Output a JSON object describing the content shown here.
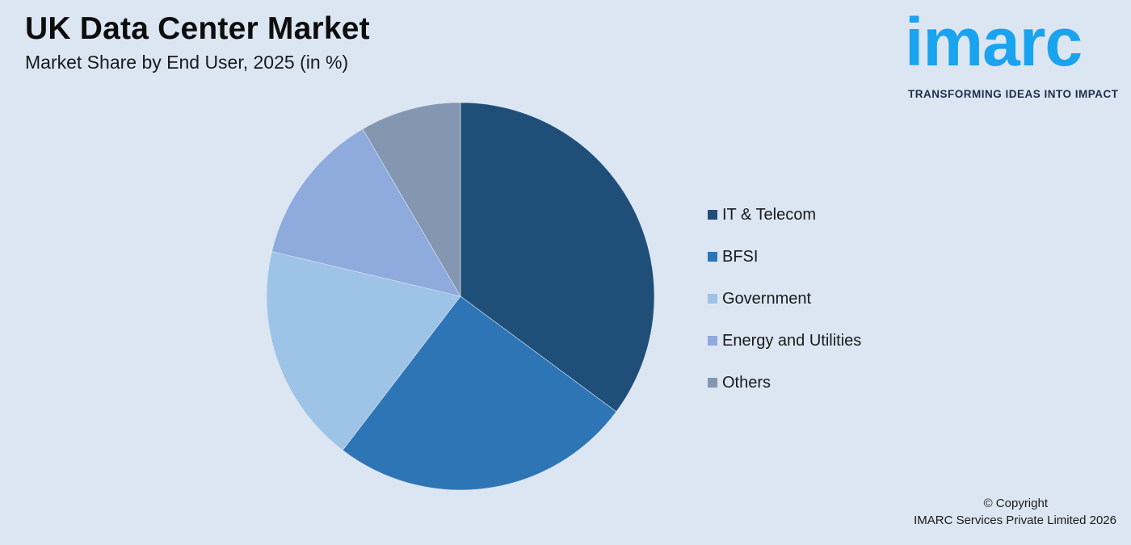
{
  "header": {
    "title": "UK Data Center Market",
    "subtitle": "Market Share by End User, 2025 (in %)"
  },
  "logo": {
    "wordmark": "imarc",
    "tagline": "TRANSFORMING IDEAS INTO IMPACT",
    "color": "#1aa3ee"
  },
  "chart_data": {
    "type": "pie",
    "title": "UK Data Center Market",
    "subtitle": "Market Share by End User, 2025 (in %)",
    "legend_position": "right",
    "start_angle_deg": 0,
    "direction": "clockwise",
    "slices": [
      {
        "label": "IT & Telecom",
        "value": 35.5,
        "color": "#1f4e79"
      },
      {
        "label": "BFSI",
        "value": 25.5,
        "color": "#2e75b6"
      },
      {
        "label": "Government",
        "value": 18.5,
        "color": "#9dc3e6"
      },
      {
        "label": "Energy and Utilities",
        "value": 13,
        "color": "#8faadc"
      },
      {
        "label": "Others",
        "value": 8.5,
        "color": "#8497b0"
      }
    ]
  },
  "footer": {
    "copyright_line1": "© Copyright",
    "copyright_line2": "IMARC Services Private Limited 2026"
  }
}
